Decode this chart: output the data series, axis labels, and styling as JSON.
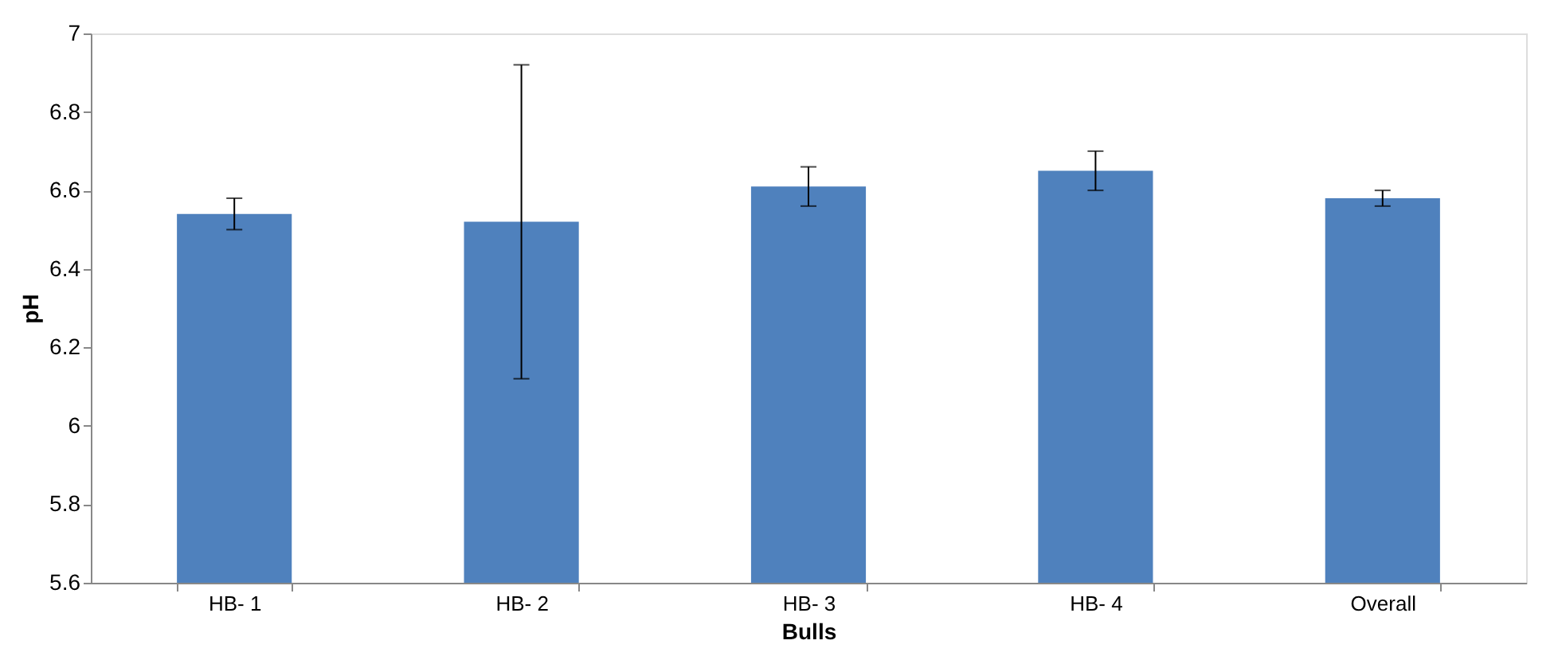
{
  "chart_data": {
    "type": "bar",
    "xlabel": "Bulls",
    "ylabel": "pH",
    "categories": [
      "HB- 1",
      "HB- 2",
      "HB- 3",
      "HB- 4",
      "Overall"
    ],
    "values": [
      6.54,
      6.52,
      6.61,
      6.65,
      6.58
    ],
    "errors": [
      0.04,
      0.4,
      0.05,
      0.05,
      0.02
    ],
    "color": "#4f81bd",
    "ylim": [
      5.6,
      7
    ],
    "yticks": [
      5.6,
      5.8,
      6,
      6.2,
      6.4,
      6.6,
      6.8,
      7
    ],
    "grid": false
  }
}
